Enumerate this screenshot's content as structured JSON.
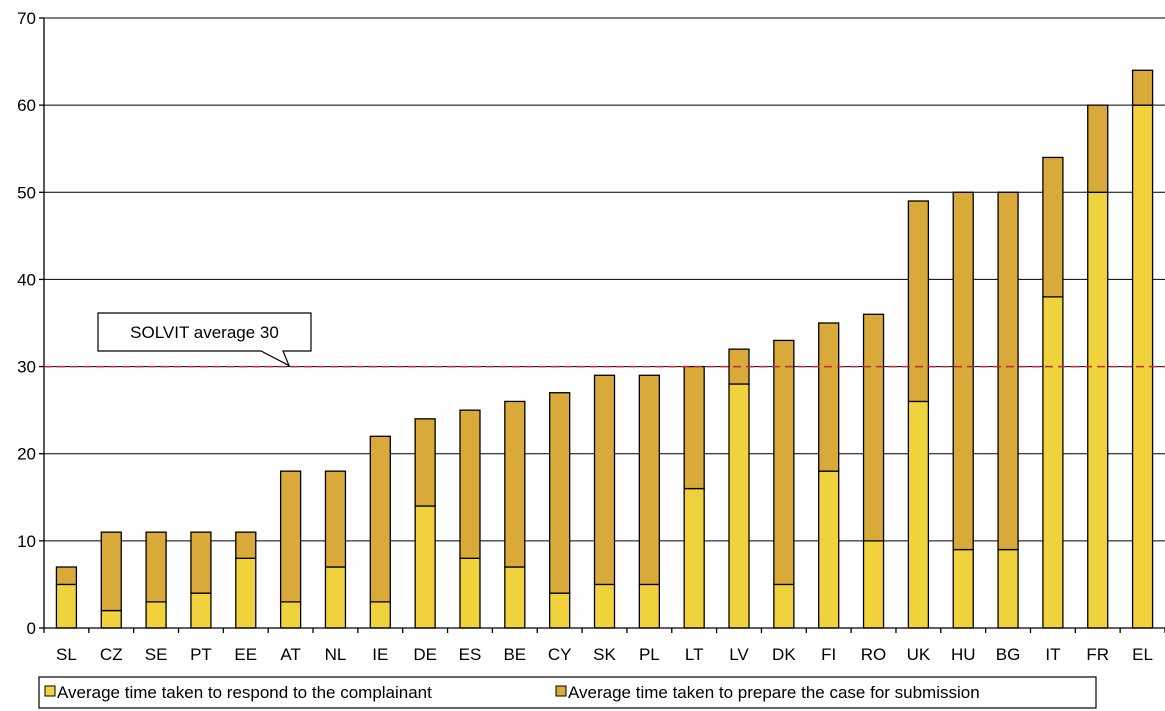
{
  "chart_data": {
    "type": "bar",
    "stacked": true,
    "title": "",
    "xlabel": "",
    "ylabel": "",
    "ylim": [
      0,
      70
    ],
    "yticks": [
      0,
      10,
      20,
      30,
      40,
      50,
      60,
      70
    ],
    "grid": true,
    "legend_position": "bottom",
    "categories": [
      "SL",
      "CZ",
      "SE",
      "PT",
      "EE",
      "AT",
      "NL",
      "IE",
      "DE",
      "ES",
      "BE",
      "CY",
      "SK",
      "PL",
      "LT",
      "LV",
      "DK",
      "FI",
      "RO",
      "UK",
      "HU",
      "BG",
      "IT",
      "FR",
      "EL"
    ],
    "series": [
      {
        "name": "Average time taken to respond to the complainant",
        "color": "#f0d33c",
        "values": [
          5,
          2,
          3,
          4,
          8,
          3,
          7,
          3,
          14,
          8,
          7,
          4,
          5,
          5,
          16,
          28,
          5,
          18,
          10,
          26,
          9,
          9,
          38,
          50,
          60
        ]
      },
      {
        "name": "Average time taken to prepare the case for submission",
        "color": "#d9a93a",
        "values": [
          2,
          9,
          8,
          7,
          3,
          15,
          11,
          19,
          10,
          17,
          19,
          23,
          24,
          24,
          14,
          4,
          28,
          17,
          26,
          23,
          41,
          41,
          16,
          10,
          4
        ]
      }
    ],
    "reference_line": {
      "value": 30,
      "label": "SOLVIT average 30",
      "color": "#c0283c"
    }
  }
}
